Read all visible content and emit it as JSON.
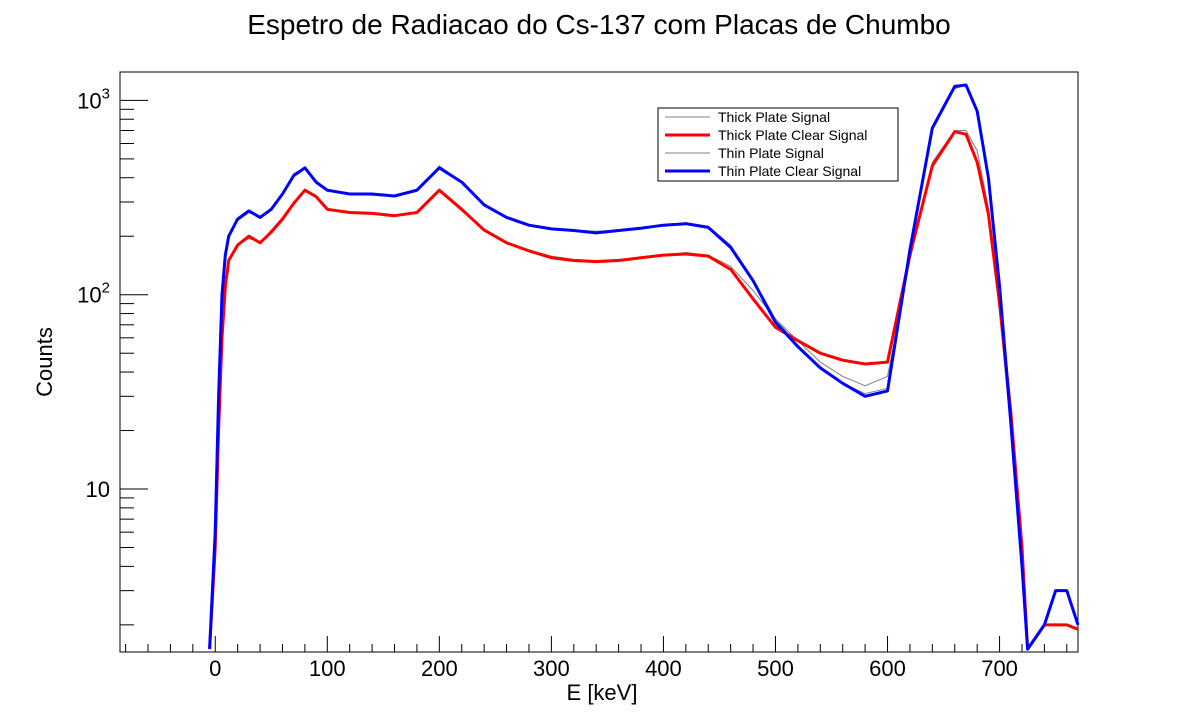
{
  "chart_data": {
    "type": "line",
    "title": "Espetro de Radiacao do Cs-137 com Placas de Chumbo",
    "xlabel": "E [keV]",
    "ylabel": "Counts",
    "xlim": [
      -85,
      770
    ],
    "ylim": [
      1.45,
      1400
    ],
    "yscale": "log",
    "grid": false,
    "legend_position": "top-right",
    "x_ticks": [
      0,
      100,
      200,
      300,
      400,
      500,
      600,
      700
    ],
    "x_tick_labels": [
      "0",
      "100",
      "200",
      "300",
      "400",
      "500",
      "600",
      "700"
    ],
    "y_ticks": [
      {
        "value": 10,
        "base": "10",
        "exp": ""
      },
      {
        "value": 100,
        "base": "10",
        "exp": "2"
      },
      {
        "value": 1000,
        "base": "10",
        "exp": "3"
      }
    ],
    "series": [
      {
        "name": "Thick Plate Signal",
        "color": "#808080",
        "x": [
          -5,
          0,
          3,
          6,
          9,
          12,
          20,
          30,
          40,
          50,
          60,
          70,
          80,
          90,
          100,
          120,
          140,
          160,
          180,
          200,
          220,
          240,
          260,
          280,
          300,
          320,
          340,
          360,
          380,
          400,
          420,
          440,
          460,
          480,
          500,
          520,
          540,
          560,
          580,
          600,
          620,
          640,
          660,
          670,
          680,
          690,
          700,
          710,
          720,
          725
        ],
        "y": [
          1.5,
          5,
          20,
          60,
          110,
          150,
          180,
          195,
          185,
          215,
          250,
          300,
          340,
          320,
          275,
          265,
          262,
          255,
          265,
          340,
          270,
          215,
          185,
          170,
          158,
          152,
          150,
          152,
          155,
          160,
          165,
          160,
          140,
          105,
          75,
          58,
          45,
          38,
          34,
          38,
          150,
          480,
          700,
          700,
          550,
          280,
          80,
          20,
          4,
          1.5
        ]
      },
      {
        "name": "Thick Plate Clear Signal",
        "color": "#ff0000",
        "x": [
          -5,
          0,
          3,
          6,
          9,
          12,
          20,
          30,
          40,
          50,
          60,
          70,
          80,
          90,
          100,
          120,
          140,
          160,
          180,
          200,
          220,
          240,
          260,
          280,
          300,
          320,
          340,
          360,
          380,
          400,
          420,
          440,
          460,
          480,
          500,
          520,
          540,
          560,
          580,
          600,
          620,
          640,
          660,
          670,
          680,
          690,
          700,
          710,
          720,
          725,
          740,
          750,
          760,
          770
        ],
        "y": [
          1.5,
          5,
          20,
          60,
          110,
          150,
          180,
          200,
          185,
          210,
          245,
          295,
          345,
          320,
          275,
          265,
          262,
          255,
          265,
          345,
          275,
          215,
          185,
          168,
          155,
          150,
          148,
          150,
          155,
          160,
          162,
          158,
          135,
          95,
          68,
          58,
          50,
          46,
          44,
          45,
          160,
          460,
          690,
          670,
          480,
          260,
          90,
          25,
          5,
          1.5,
          2,
          2,
          2,
          1.9
        ]
      },
      {
        "name": "Thin Plate Signal",
        "color": "#808080",
        "x": [
          -5,
          0,
          3,
          6,
          9,
          12,
          20,
          30,
          40,
          50,
          60,
          70,
          80,
          90,
          100,
          120,
          140,
          160,
          180,
          200,
          220,
          240,
          260,
          280,
          300,
          320,
          340,
          360,
          380,
          400,
          420,
          440,
          460,
          480,
          500,
          520,
          540,
          560,
          580,
          600,
          620,
          640,
          660,
          670,
          680,
          690,
          700,
          710,
          720,
          725
        ],
        "y": [
          1.5,
          6,
          30,
          100,
          160,
          200,
          240,
          265,
          250,
          280,
          330,
          420,
          450,
          380,
          340,
          330,
          325,
          320,
          340,
          460,
          380,
          290,
          250,
          230,
          220,
          215,
          212,
          215,
          220,
          228,
          235,
          225,
          180,
          120,
          75,
          55,
          42,
          35,
          31,
          33,
          160,
          700,
          1150,
          1200,
          900,
          420,
          110,
          22,
          4,
          1.5
        ]
      },
      {
        "name": "Thin Plate Clear Signal",
        "color": "#0000ff",
        "x": [
          -5,
          0,
          3,
          6,
          9,
          12,
          20,
          30,
          40,
          50,
          60,
          70,
          80,
          90,
          100,
          120,
          140,
          160,
          180,
          200,
          220,
          240,
          260,
          280,
          300,
          320,
          340,
          360,
          380,
          400,
          420,
          440,
          460,
          480,
          500,
          520,
          540,
          560,
          580,
          600,
          620,
          640,
          660,
          670,
          680,
          690,
          700,
          710,
          720,
          725,
          740,
          750,
          760,
          770
        ],
        "y": [
          1.5,
          6,
          30,
          100,
          160,
          200,
          245,
          270,
          250,
          275,
          330,
          410,
          450,
          380,
          345,
          330,
          330,
          322,
          345,
          450,
          380,
          290,
          250,
          228,
          218,
          214,
          208,
          214,
          220,
          228,
          232,
          222,
          175,
          118,
          72,
          54,
          42,
          35,
          30,
          32,
          170,
          720,
          1180,
          1200,
          880,
          400,
          110,
          22,
          4,
          1.5,
          2,
          3,
          3,
          2
        ]
      }
    ]
  }
}
